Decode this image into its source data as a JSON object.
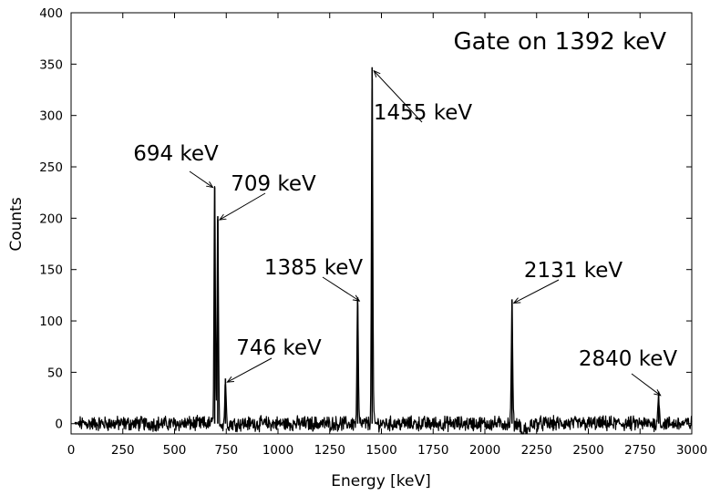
{
  "chart_data": {
    "type": "line",
    "title": "Gate on 1392 keV",
    "xlabel": "Energy [keV]",
    "ylabel": "Counts",
    "xlim": [
      0,
      3000
    ],
    "ylim": [
      -10,
      400
    ],
    "x_ticks": [
      0,
      250,
      500,
      750,
      1000,
      1250,
      1500,
      1750,
      2000,
      2250,
      2500,
      2750,
      3000
    ],
    "y_ticks": [
      0,
      50,
      100,
      150,
      200,
      250,
      300,
      350,
      400
    ],
    "grid": false,
    "line_color": "#000000",
    "peaks": [
      {
        "energy": 694,
        "counts": 230
      },
      {
        "energy": 709,
        "counts": 202
      },
      {
        "energy": 746,
        "counts": 44
      },
      {
        "energy": 1385,
        "counts": 123
      },
      {
        "energy": 1455,
        "counts": 347
      },
      {
        "energy": 2131,
        "counts": 121
      },
      {
        "energy": 2840,
        "counts": 31
      }
    ],
    "annotations": [
      {
        "text": "694 keV",
        "energy": 694,
        "counts": 230
      },
      {
        "text": "709 keV",
        "energy": 709,
        "counts": 202
      },
      {
        "text": "746 keV",
        "energy": 746,
        "counts": 44
      },
      {
        "text": "1385 keV",
        "energy": 1385,
        "counts": 123
      },
      {
        "text": "1455 keV",
        "energy": 1455,
        "counts": 347
      },
      {
        "text": "2131 keV",
        "energy": 2131,
        "counts": 121
      },
      {
        "text": "2840 keV",
        "energy": 2840,
        "counts": 31
      }
    ],
    "noise_amplitude": 6
  }
}
